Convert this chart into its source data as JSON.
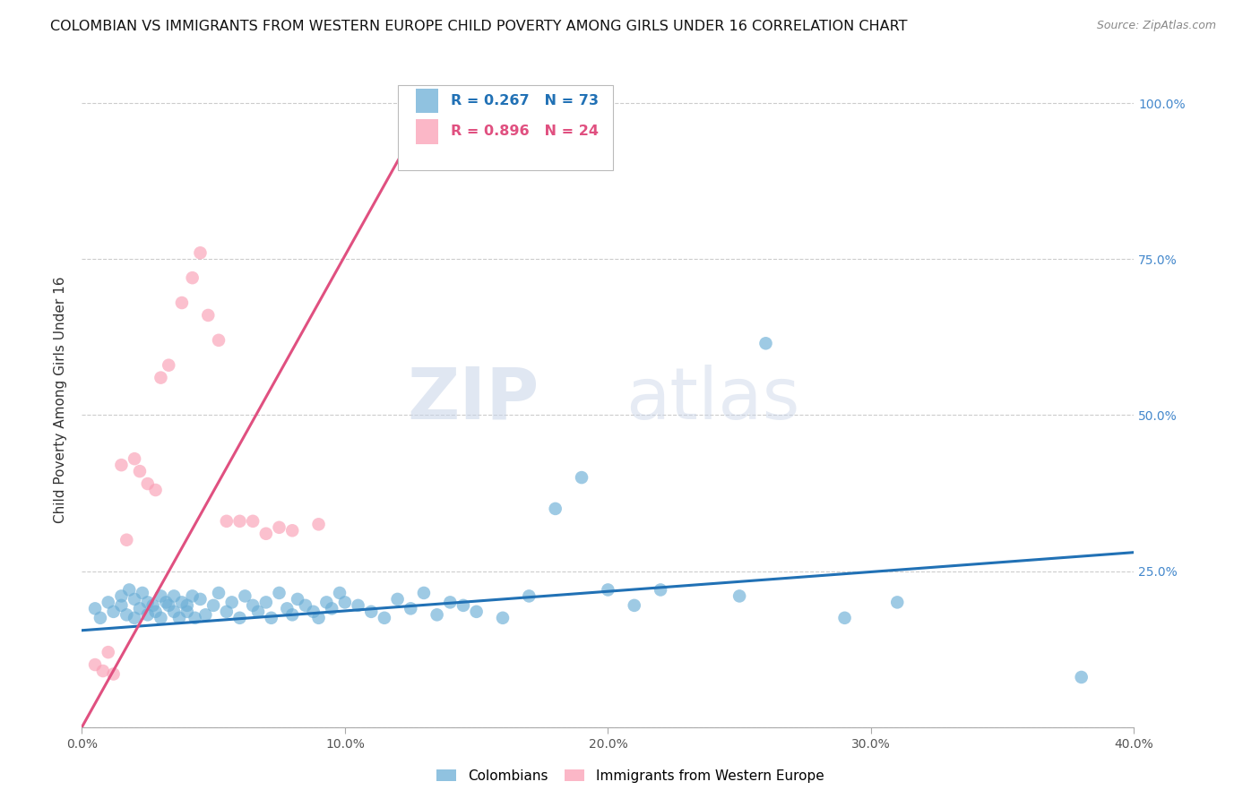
{
  "title": "COLOMBIAN VS IMMIGRANTS FROM WESTERN EUROPE CHILD POVERTY AMONG GIRLS UNDER 16 CORRELATION CHART",
  "source": "Source: ZipAtlas.com",
  "ylabel": "Child Poverty Among Girls Under 16",
  "xlim": [
    0.0,
    0.4
  ],
  "ylim": [
    0.0,
    1.05
  ],
  "xticks": [
    0.0,
    0.1,
    0.2,
    0.3,
    0.4
  ],
  "yticks": [
    0.0,
    0.25,
    0.5,
    0.75,
    1.0
  ],
  "xtick_labels": [
    "0.0%",
    "10.0%",
    "20.0%",
    "30.0%",
    "40.0%"
  ],
  "ytick_labels": [
    "",
    "25.0%",
    "50.0%",
    "75.0%",
    "100.0%"
  ],
  "blue_color": "#6baed6",
  "pink_color": "#fa9fb5",
  "blue_line_color": "#2171b5",
  "pink_line_color": "#e05080",
  "legend_blue_R": "R = 0.267",
  "legend_blue_N": "N = 73",
  "legend_pink_R": "R = 0.896",
  "legend_pink_N": "N = 24",
  "watermark_zip": "ZIP",
  "watermark_atlas": "atlas",
  "blue_scatter_x": [
    0.005,
    0.007,
    0.01,
    0.012,
    0.015,
    0.015,
    0.017,
    0.018,
    0.02,
    0.02,
    0.022,
    0.023,
    0.025,
    0.025,
    0.027,
    0.028,
    0.03,
    0.03,
    0.032,
    0.033,
    0.035,
    0.035,
    0.037,
    0.038,
    0.04,
    0.04,
    0.042,
    0.043,
    0.045,
    0.047,
    0.05,
    0.052,
    0.055,
    0.057,
    0.06,
    0.062,
    0.065,
    0.067,
    0.07,
    0.072,
    0.075,
    0.078,
    0.08,
    0.082,
    0.085,
    0.088,
    0.09,
    0.093,
    0.095,
    0.098,
    0.1,
    0.105,
    0.11,
    0.115,
    0.12,
    0.125,
    0.13,
    0.135,
    0.14,
    0.145,
    0.15,
    0.16,
    0.17,
    0.18,
    0.19,
    0.2,
    0.21,
    0.22,
    0.25,
    0.26,
    0.29,
    0.31,
    0.38
  ],
  "blue_scatter_y": [
    0.19,
    0.175,
    0.2,
    0.185,
    0.21,
    0.195,
    0.18,
    0.22,
    0.175,
    0.205,
    0.19,
    0.215,
    0.18,
    0.2,
    0.195,
    0.185,
    0.21,
    0.175,
    0.2,
    0.195,
    0.185,
    0.21,
    0.175,
    0.2,
    0.195,
    0.185,
    0.21,
    0.175,
    0.205,
    0.18,
    0.195,
    0.215,
    0.185,
    0.2,
    0.175,
    0.21,
    0.195,
    0.185,
    0.2,
    0.175,
    0.215,
    0.19,
    0.18,
    0.205,
    0.195,
    0.185,
    0.175,
    0.2,
    0.19,
    0.215,
    0.2,
    0.195,
    0.185,
    0.175,
    0.205,
    0.19,
    0.215,
    0.18,
    0.2,
    0.195,
    0.185,
    0.175,
    0.21,
    0.35,
    0.4,
    0.22,
    0.195,
    0.22,
    0.21,
    0.615,
    0.175,
    0.2,
    0.08
  ],
  "pink_scatter_x": [
    0.005,
    0.008,
    0.01,
    0.012,
    0.015,
    0.017,
    0.02,
    0.022,
    0.025,
    0.028,
    0.03,
    0.033,
    0.038,
    0.042,
    0.045,
    0.048,
    0.052,
    0.055,
    0.06,
    0.065,
    0.07,
    0.075,
    0.08,
    0.09
  ],
  "pink_scatter_y": [
    0.1,
    0.09,
    0.12,
    0.085,
    0.42,
    0.3,
    0.43,
    0.41,
    0.39,
    0.38,
    0.56,
    0.58,
    0.68,
    0.72,
    0.76,
    0.66,
    0.62,
    0.33,
    0.33,
    0.33,
    0.31,
    0.32,
    0.315,
    0.325
  ],
  "blue_trend_x": [
    0.0,
    0.4
  ],
  "blue_trend_y": [
    0.155,
    0.28
  ],
  "pink_trend_x": [
    0.0,
    0.135
  ],
  "pink_trend_y": [
    0.0,
    1.02
  ]
}
